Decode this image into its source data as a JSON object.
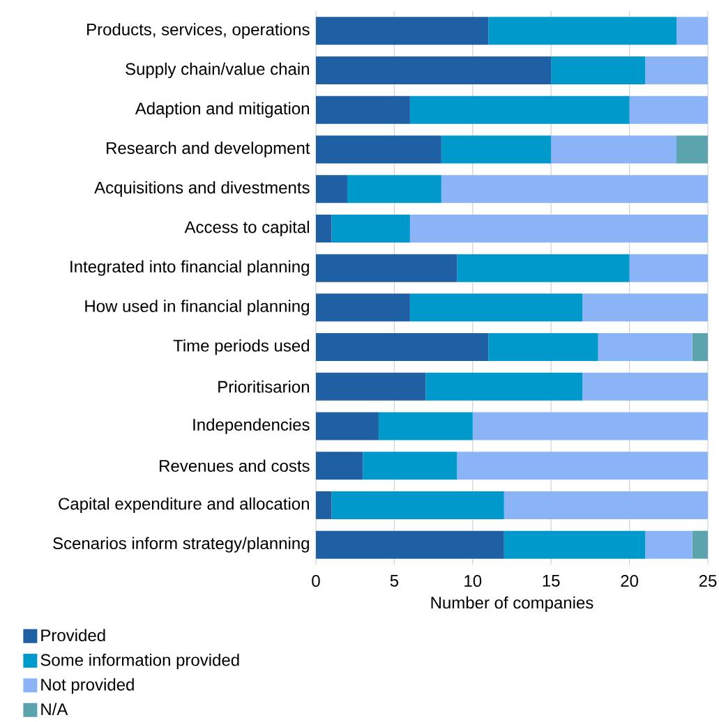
{
  "chart_data": {
    "type": "bar",
    "orientation": "horizontal",
    "stacked": true,
    "categories": [
      "Products, services, operations",
      "Supply chain/value chain",
      "Adaption and mitigation",
      "Research and development",
      "Acquisitions and divestments",
      "Access to capital",
      "Integrated into financial planning",
      "How used in financial planning",
      "Time periods used",
      "Prioritisarion",
      "Independencies",
      "Revenues and costs",
      "Capital expenditure and allocation",
      "Scenarios inform strategy/planning"
    ],
    "series": [
      {
        "name": "Provided",
        "color": "#1f5fa3",
        "values": [
          11,
          15,
          6,
          8,
          2,
          1,
          9,
          6,
          11,
          7,
          4,
          3,
          1,
          12
        ]
      },
      {
        "name": "Some information provided",
        "color": "#0099cc",
        "values": [
          12,
          6,
          14,
          7,
          6,
          5,
          11,
          11,
          7,
          10,
          6,
          6,
          11,
          9
        ]
      },
      {
        "name": "Not provided",
        "color": "#8ab4f5",
        "values": [
          2,
          4,
          5,
          8,
          17,
          19,
          5,
          8,
          6,
          8,
          15,
          16,
          13,
          3
        ]
      },
      {
        "name": "N/A",
        "color": "#5ba3ad",
        "values": [
          null,
          null,
          null,
          2,
          null,
          null,
          null,
          null,
          1,
          null,
          null,
          null,
          null,
          1
        ]
      }
    ],
    "xlabel": "Number of companies",
    "xlim": [
      0,
      25
    ],
    "xticks": [
      0,
      5,
      10,
      15,
      20,
      25
    ],
    "grid": "x",
    "legend": "bottom"
  }
}
